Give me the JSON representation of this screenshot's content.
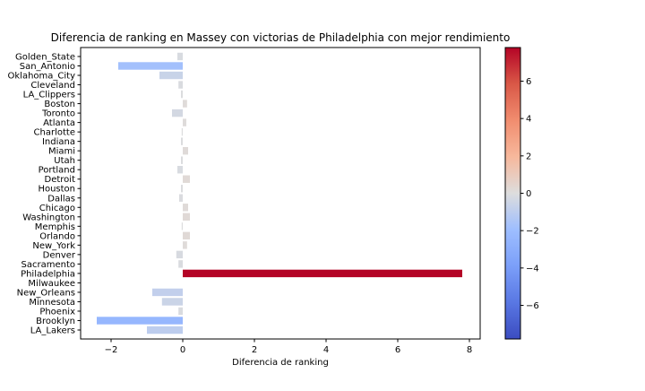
{
  "chart_data": {
    "type": "bar",
    "orientation": "horizontal",
    "title": "Diferencia de ranking en Massey con victorias de Philadelphia con mejor rendimiento",
    "xlabel": "Diferencia de ranking",
    "ylabel": "",
    "xlim": [
      -2.85,
      8.3
    ],
    "xticks": [
      -2,
      0,
      2,
      4,
      6,
      8
    ],
    "xtick_labels": [
      "−2",
      "0",
      "2",
      "4",
      "6",
      "8"
    ],
    "categories": [
      "Golden_State",
      "San_Antonio",
      "Oklahoma_City",
      "Cleveland",
      "LA_Clippers",
      "Boston",
      "Toronto",
      "Atlanta",
      "Charlotte",
      "Indiana",
      "Miami",
      "Utah",
      "Portland",
      "Detroit",
      "Houston",
      "Dallas",
      "Chicago",
      "Washington",
      "Memphis",
      "Orlando",
      "New_York",
      "Denver",
      "Sacramento",
      "Philadelphia",
      "Milwaukee",
      "New_Orleans",
      "Minnesota",
      "Phoenix",
      "Brooklyn",
      "LA_Lakers"
    ],
    "values": [
      -0.15,
      -1.8,
      -0.65,
      -0.12,
      -0.05,
      0.12,
      -0.3,
      0.1,
      -0.03,
      -0.05,
      0.15,
      -0.05,
      -0.15,
      0.2,
      -0.05,
      -0.1,
      0.15,
      0.2,
      -0.03,
      0.2,
      0.12,
      -0.18,
      -0.12,
      7.8,
      0.0,
      -0.85,
      -0.58,
      -0.12,
      -2.4,
      -1.0
    ],
    "colormap": "coolwarm",
    "color_range": [
      -7.8,
      7.8
    ],
    "colorbar_ticks": [
      6,
      4,
      2,
      0,
      -2,
      -4,
      -6
    ],
    "colorbar_tick_labels": [
      "6",
      "4",
      "2",
      "0",
      "−2",
      "−4",
      "−6"
    ],
    "grid": false,
    "legend": "none"
  }
}
